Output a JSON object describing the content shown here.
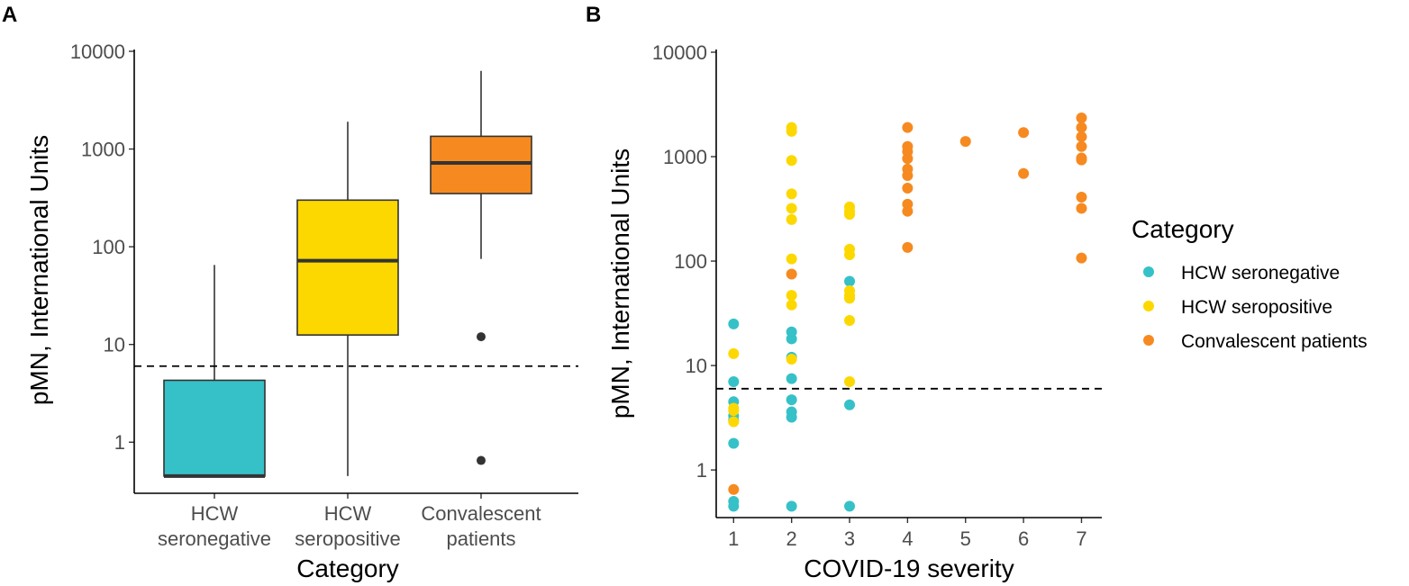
{
  "chart_data": [
    {
      "panel": "A",
      "type": "box",
      "xlabel": "Category",
      "ylabel": "pMN, International Units",
      "yscale": "log10",
      "ylim": [
        0.3,
        10000
      ],
      "yticks": [
        "1",
        "10",
        "100",
        "1000",
        "10000"
      ],
      "threshold": 6,
      "categories": [
        {
          "label_lines": [
            "HCW",
            "seronegative"
          ],
          "color": "#36c1c8",
          "min": 0.45,
          "q1": 0.45,
          "median": 0.45,
          "q3": 4.3,
          "max": 65,
          "outliers": []
        },
        {
          "label_lines": [
            "HCW",
            "seropositive"
          ],
          "color": "#fcd800",
          "min": 0.45,
          "q1": 12.5,
          "median": 72,
          "q3": 300,
          "max": 1900,
          "outliers": []
        },
        {
          "label_lines": [
            "Convalescent",
            "patients"
          ],
          "color": "#f68a20",
          "min": 75,
          "q1": 350,
          "median": 720,
          "q3": 1350,
          "max": 6300,
          "outliers": [
            12,
            0.65
          ]
        }
      ]
    },
    {
      "panel": "B",
      "type": "scatter",
      "xlabel": "COVID-19 severity",
      "ylabel": "pMN, International Units",
      "yscale": "log10",
      "ylim": [
        0.35,
        10000
      ],
      "xlim": [
        0.7,
        7.35
      ],
      "xticks": [
        "1",
        "2",
        "3",
        "4",
        "5",
        "6",
        "7"
      ],
      "yticks": [
        "1",
        "10",
        "100",
        "1000",
        "10000"
      ],
      "threshold": 6,
      "series": [
        {
          "name": "HCW seronegative",
          "color": "#36c1c8",
          "points": [
            [
              1,
              25
            ],
            [
              1,
              7
            ],
            [
              1,
              4.5
            ],
            [
              1,
              3.3
            ],
            [
              1,
              3
            ],
            [
              1,
              1.8
            ],
            [
              1,
              0.5
            ],
            [
              1,
              0.45
            ],
            [
              2,
              21
            ],
            [
              2,
              18
            ],
            [
              2,
              12
            ],
            [
              2,
              7.5
            ],
            [
              2,
              4.7
            ],
            [
              2,
              3.6
            ],
            [
              2,
              3.2
            ],
            [
              2,
              0.45
            ],
            [
              3,
              64
            ],
            [
              3,
              4.2
            ],
            [
              3,
              0.45
            ]
          ]
        },
        {
          "name": "HCW seropositive",
          "color": "#fcd800",
          "points": [
            [
              1,
              13
            ],
            [
              1,
              3.9
            ],
            [
              1,
              3.7
            ],
            [
              1,
              2.9
            ],
            [
              2,
              1900
            ],
            [
              2,
              1750
            ],
            [
              2,
              920
            ],
            [
              2,
              440
            ],
            [
              2,
              320
            ],
            [
              2,
              250
            ],
            [
              2,
              105
            ],
            [
              2,
              47
            ],
            [
              2,
              38
            ],
            [
              2,
              11.5
            ],
            [
              3,
              330
            ],
            [
              3,
              300
            ],
            [
              3,
              280
            ],
            [
              3,
              130
            ],
            [
              3,
              115
            ],
            [
              3,
              52
            ],
            [
              3,
              47
            ],
            [
              3,
              44
            ],
            [
              3,
              27
            ],
            [
              3,
              7
            ]
          ]
        },
        {
          "name": "Convalescent patients",
          "color": "#f68a20",
          "points": [
            [
              1,
              0.65
            ],
            [
              2,
              75
            ],
            [
              4,
              1900
            ],
            [
              4,
              1250
            ],
            [
              4,
              1120
            ],
            [
              4,
              960
            ],
            [
              4,
              760
            ],
            [
              4,
              660
            ],
            [
              4,
              500
            ],
            [
              4,
              350
            ],
            [
              4,
              300
            ],
            [
              4,
              135
            ],
            [
              5,
              1400
            ],
            [
              6,
              1700
            ],
            [
              6,
              690
            ],
            [
              7,
              2350
            ],
            [
              7,
              1900
            ],
            [
              7,
              1550
            ],
            [
              7,
              1250
            ],
            [
              7,
              970
            ],
            [
              7,
              930
            ],
            [
              7,
              410
            ],
            [
              7,
              320
            ],
            [
              7,
              107
            ]
          ]
        }
      ]
    }
  ],
  "panels": {
    "a": "A",
    "b": "B"
  },
  "legend": {
    "title": "Category"
  }
}
